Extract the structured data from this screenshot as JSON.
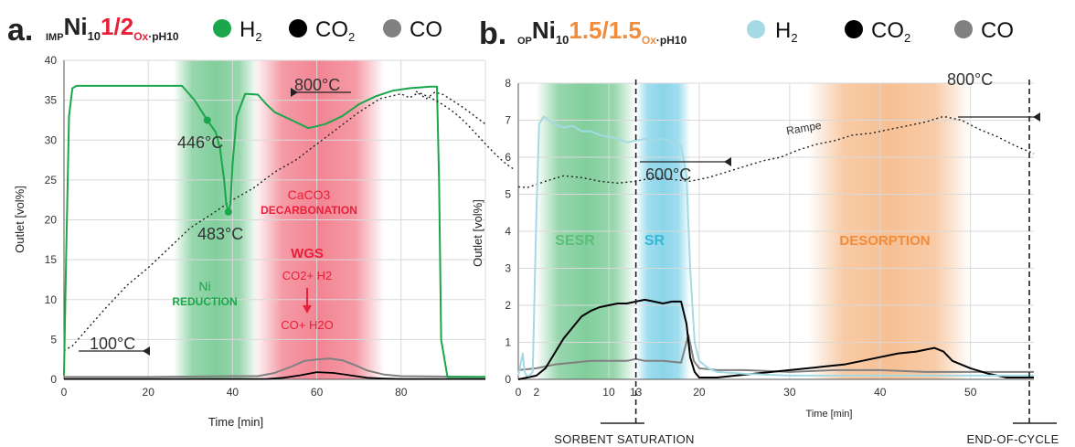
{
  "chart_data": [
    {
      "panel": "a",
      "type": "line",
      "header": {
        "letter": "a.",
        "pre_sub": "IMP",
        "main": "Ni",
        "main_sub": "10",
        "ratio": "1/2",
        "post_sub": "Ox",
        "post": "·pH10"
      },
      "legend": [
        {
          "label": "H",
          "sub": "2",
          "color": "#1aa64a"
        },
        {
          "label": "CO",
          "sub": "2",
          "color": "#000000"
        },
        {
          "label": "CO",
          "sub": "",
          "color": "#808080"
        }
      ],
      "xlabel": "Time [min]",
      "ylabel": "Outlet [vol%]",
      "xlim": [
        0,
        100
      ],
      "ylim": [
        0,
        40
      ],
      "xticks": [
        0,
        20,
        40,
        60,
        80
      ],
      "yticks": [
        0,
        5,
        10,
        15,
        20,
        25,
        30,
        35,
        40
      ],
      "grid": true,
      "shaded_regions": [
        {
          "x0": 26,
          "x1": 46,
          "color": "#1aa64a"
        },
        {
          "x0": 45,
          "x1": 76,
          "color": "#e8203a"
        }
      ],
      "region_labels": [
        {
          "lines": [
            "Ni",
            "REDUCTION"
          ],
          "color": "#1aa64a"
        },
        {
          "lines": [
            "CaCO3",
            "DECARBONATION"
          ],
          "color": "#e8203a"
        },
        {
          "lines": [
            "WGS",
            "CO2+ H2",
            "CO+ H2O"
          ],
          "color": "#e8203a"
        }
      ],
      "annotations": [
        {
          "text": "446°C",
          "x": 34,
          "y": 32.5
        },
        {
          "text": "483°C",
          "x": 39,
          "y": 21
        },
        {
          "text": "100°C",
          "x": 0,
          "y": 4
        },
        {
          "text": "800°C",
          "x": 74,
          "y": 36
        }
      ],
      "series": [
        {
          "name": "H2",
          "color": "#1aa64a",
          "width": 2,
          "dash": "",
          "x": [
            0,
            0.5,
            1.2,
            2,
            3,
            10,
            20,
            28,
            31,
            34,
            36,
            37,
            38,
            38.5,
            39,
            39.5,
            40,
            41,
            43,
            46,
            48,
            50,
            54,
            58,
            62,
            66,
            70,
            74,
            78,
            82,
            87,
            88.5,
            89,
            89.5,
            91,
            100
          ],
          "y": [
            0.5,
            15,
            33,
            36.5,
            36.8,
            36.8,
            36.8,
            36.8,
            35,
            32.5,
            31,
            29,
            25,
            22,
            21,
            22,
            27,
            33,
            35.8,
            35.7,
            34.5,
            33.5,
            32.5,
            31.5,
            32,
            33,
            34.5,
            35.5,
            36.2,
            36.5,
            36.7,
            36.7,
            25,
            5,
            0.3,
            0.3
          ]
        },
        {
          "name": "CO2",
          "color": "#000000",
          "width": 1.8,
          "dash": "",
          "x": [
            0,
            48,
            52,
            56,
            60,
            64,
            68,
            72,
            76,
            80,
            100
          ],
          "y": [
            0.05,
            0.05,
            0.2,
            0.5,
            0.9,
            0.8,
            0.5,
            0.2,
            0.1,
            0.05,
            0.05
          ]
        },
        {
          "name": "CO",
          "color": "#808080",
          "width": 2,
          "dash": "",
          "x": [
            0,
            20,
            40,
            46,
            50,
            54,
            57,
            60,
            63,
            66,
            69,
            72,
            76,
            80,
            100
          ],
          "y": [
            0.3,
            0.3,
            0.4,
            0.4,
            0.8,
            1.6,
            2.3,
            2.5,
            2.6,
            2.4,
            1.8,
            1.1,
            0.6,
            0.4,
            0.3
          ]
        },
        {
          "name": "Temperature",
          "color": "#222222",
          "width": 1.4,
          "dash": "2,3",
          "x": [
            0,
            2,
            5,
            10,
            15,
            20,
            25,
            30,
            35,
            40,
            45,
            50,
            55,
            60,
            65,
            70,
            75,
            80,
            82,
            84,
            86,
            88,
            90,
            95,
            100
          ],
          "y": [
            3.6,
            4.2,
            6,
            9,
            11.8,
            14,
            16.5,
            19,
            20.7,
            22.5,
            24,
            26,
            27.5,
            29.5,
            31.5,
            33.5,
            35.2,
            35.8,
            35.3,
            35.9,
            35.2,
            36,
            35.7,
            34,
            32
          ]
        }
      ]
    },
    {
      "panel": "b",
      "type": "line",
      "header": {
        "letter": "b.",
        "pre_sub": "OP",
        "main": "Ni",
        "main_sub": "10",
        "ratio": "1.5/1.5",
        "post_sub": "Ox",
        "post": "·pH10"
      },
      "legend": [
        {
          "label": "H",
          "sub": "2",
          "color": "#a3dae3"
        },
        {
          "label": "CO",
          "sub": "2",
          "color": "#000000"
        },
        {
          "label": "CO",
          "sub": "",
          "color": "#808080"
        }
      ],
      "xlabel": "Time [min]",
      "ylabel": "Outlet [vol%]",
      "xlim": [
        0,
        57
      ],
      "ylim": [
        0,
        8
      ],
      "xticks": [
        0,
        2,
        10,
        13,
        20,
        30,
        40,
        50
      ],
      "highlight_ticks": [
        2,
        13
      ],
      "yticks": [
        0,
        1,
        2,
        3,
        4,
        5,
        6,
        7,
        8
      ],
      "grid": true,
      "shaded_regions": [
        {
          "x0": 2,
          "x1": 13,
          "color": "#1aa64a"
        },
        {
          "x0": 13,
          "x1": 19,
          "color": "#2bb3d9"
        },
        {
          "x0": 32,
          "x1": 50,
          "color": "#f08c3c"
        }
      ],
      "region_labels": [
        {
          "text": "SESR",
          "color": "#5bbf7a"
        },
        {
          "text": "SR",
          "color": "#35b8d6"
        },
        {
          "text": "DESORPTION",
          "color": "#f08c3c"
        }
      ],
      "vlines": [
        13,
        56.5
      ],
      "annotations": [
        {
          "text": "600°C",
          "x": 18,
          "y": 5.4
        },
        {
          "text": "800°C",
          "x": 46,
          "y": 7.1
        },
        {
          "text": "Rampe",
          "x": 30,
          "y": 6.5
        }
      ],
      "bottom_labels": [
        "SORBENT SATURATION",
        "END-OF-CYCLE"
      ],
      "series": [
        {
          "name": "H2",
          "color": "#a3dae3",
          "width": 2,
          "dash": "",
          "x": [
            0,
            0.5,
            0.7,
            0.9,
            1.2,
            1.6,
            2,
            2.3,
            2.8,
            3.4,
            4,
            5,
            6,
            7,
            8,
            9,
            10,
            11,
            12,
            13,
            14,
            15,
            16,
            17,
            18,
            18.6,
            19,
            19.5,
            20,
            21,
            22,
            25,
            30,
            35,
            40,
            45,
            50,
            57
          ],
          "y": [
            0.1,
            0.7,
            0.2,
            0.1,
            0.1,
            0.2,
            4.5,
            6.9,
            7.1,
            7.0,
            6.9,
            6.8,
            6.85,
            6.7,
            6.7,
            6.6,
            6.55,
            6.5,
            6.4,
            6.45,
            6.5,
            6.45,
            6.5,
            6.4,
            6.3,
            5.5,
            3,
            1,
            0.5,
            0.3,
            0.2,
            0.15,
            0.1,
            0.1,
            0.1,
            0.1,
            0.1,
            0.1
          ]
        },
        {
          "name": "CO2",
          "color": "#000000",
          "width": 2,
          "dash": "",
          "x": [
            0,
            2,
            3,
            4,
            5,
            6,
            7,
            8,
            9,
            10,
            11,
            12,
            13,
            14,
            15,
            16,
            17,
            18,
            18.6,
            19,
            19.5,
            20,
            21,
            22,
            24,
            26,
            28,
            30,
            32,
            34,
            36,
            38,
            40,
            42,
            44,
            46,
            47,
            48,
            50,
            52,
            54,
            57
          ],
          "y": [
            0,
            0.1,
            0.3,
            0.7,
            1.1,
            1.4,
            1.7,
            1.85,
            1.95,
            2.0,
            2.05,
            2.05,
            2.1,
            2.15,
            2.1,
            2.05,
            2.1,
            2.1,
            1.5,
            0.6,
            0.2,
            0.05,
            0.05,
            0.05,
            0.1,
            0.15,
            0.2,
            0.25,
            0.3,
            0.35,
            0.4,
            0.5,
            0.6,
            0.7,
            0.75,
            0.85,
            0.75,
            0.5,
            0.3,
            0.15,
            0.05,
            0.05
          ]
        },
        {
          "name": "CO",
          "color": "#808080",
          "width": 2,
          "dash": "",
          "x": [
            0,
            2,
            4,
            6,
            8,
            10,
            12,
            13,
            14,
            16,
            18,
            18.8,
            19.4,
            20,
            22,
            25,
            30,
            35,
            40,
            45,
            50,
            57
          ],
          "y": [
            0.25,
            0.3,
            0.4,
            0.45,
            0.5,
            0.5,
            0.5,
            0.55,
            0.5,
            0.5,
            0.45,
            1.2,
            0.5,
            0.3,
            0.25,
            0.25,
            0.2,
            0.25,
            0.25,
            0.2,
            0.2,
            0.2
          ]
        },
        {
          "name": "Temperature",
          "color": "#222222",
          "width": 1.4,
          "dash": "2,3",
          "x": [
            0,
            1,
            3,
            5,
            7,
            9,
            11,
            13,
            15,
            17,
            19,
            21,
            23,
            25,
            27,
            29,
            31,
            33,
            35,
            37,
            39,
            41,
            43,
            45,
            47,
            49,
            51,
            53,
            55,
            57
          ],
          "y": [
            5.2,
            5.18,
            5.35,
            5.5,
            5.45,
            5.35,
            5.3,
            5.35,
            5.45,
            5.4,
            5.35,
            5.45,
            5.6,
            5.75,
            5.9,
            6.0,
            6.2,
            6.35,
            6.45,
            6.6,
            6.65,
            6.75,
            6.85,
            6.95,
            7.1,
            7.0,
            6.75,
            6.55,
            6.3,
            6.1
          ]
        }
      ]
    }
  ]
}
